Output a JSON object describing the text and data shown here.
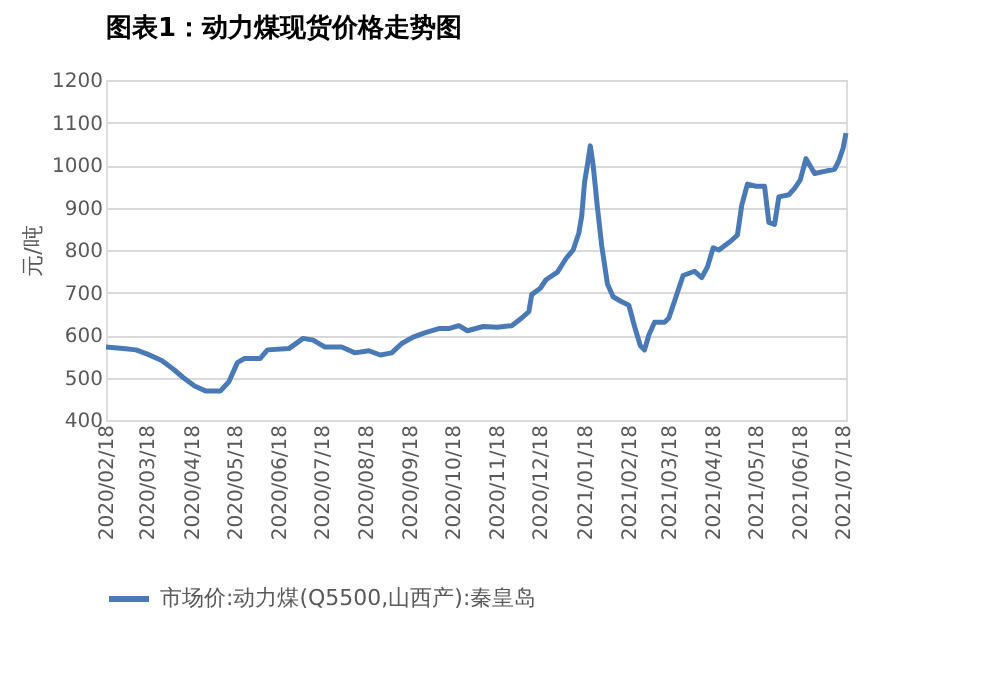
{
  "chart_data": {
    "type": "line",
    "title": "图表1：动力煤现货价格走势图",
    "ylabel": "元/吨",
    "x": [
      "2020-02-18",
      "2020-03-01",
      "2020-03-10",
      "2020-03-18",
      "2020-03-28",
      "2020-04-05",
      "2020-04-12",
      "2020-04-20",
      "2020-04-28",
      "2020-05-08",
      "2020-05-14",
      "2020-05-20",
      "2020-05-25",
      "2020-06-05",
      "2020-06-10",
      "2020-06-25",
      "2020-07-05",
      "2020-07-12",
      "2020-07-20",
      "2020-08-01",
      "2020-08-10",
      "2020-08-20",
      "2020-08-28",
      "2020-09-05",
      "2020-09-12",
      "2020-09-20",
      "2020-09-28",
      "2020-10-08",
      "2020-10-15",
      "2020-10-22",
      "2020-10-28",
      "2020-11-08",
      "2020-11-18",
      "2020-11-28",
      "2020-12-05",
      "2020-12-10",
      "2020-12-12",
      "2020-12-18",
      "2020-12-22",
      "2020-12-30",
      "2021-01-05",
      "2021-01-10",
      "2021-01-14",
      "2021-01-16",
      "2021-01-18",
      "2021-01-20",
      "2021-01-22",
      "2021-01-24",
      "2021-01-27",
      "2021-01-30",
      "2021-02-03",
      "2021-02-07",
      "2021-02-12",
      "2021-02-18",
      "2021-02-22",
      "2021-02-26",
      "2021-03-01",
      "2021-03-04",
      "2021-03-08",
      "2021-03-15",
      "2021-03-18",
      "2021-03-22",
      "2021-03-28",
      "2021-04-05",
      "2021-04-10",
      "2021-04-14",
      "2021-04-18",
      "2021-04-22",
      "2021-04-30",
      "2021-05-05",
      "2021-05-08",
      "2021-05-12",
      "2021-05-18",
      "2021-05-24",
      "2021-05-27",
      "2021-05-31",
      "2021-06-03",
      "2021-06-10",
      "2021-06-14",
      "2021-06-18",
      "2021-06-22",
      "2021-06-28",
      "2021-07-05",
      "2021-07-12",
      "2021-07-15",
      "2021-07-18",
      "2021-07-20"
    ],
    "series": [
      {
        "name": "市场价:动力煤(Q5500,山西产):秦皇岛",
        "color": "#4a7ab5",
        "values": [
          572,
          568,
          565,
          555,
          540,
          520,
          500,
          480,
          468,
          468,
          490,
          535,
          545,
          545,
          565,
          568,
          592,
          588,
          572,
          572,
          558,
          563,
          553,
          558,
          580,
          595,
          605,
          615,
          615,
          622,
          610,
          620,
          618,
          622,
          640,
          655,
          695,
          710,
          730,
          748,
          780,
          800,
          840,
          880,
          960,
          1000,
          1045,
          1000,
          900,
          810,
          720,
          690,
          680,
          670,
          620,
          575,
          565,
          600,
          630,
          630,
          640,
          680,
          740,
          750,
          735,
          760,
          805,
          800,
          820,
          835,
          905,
          955,
          950,
          950,
          865,
          860,
          925,
          930,
          945,
          965,
          1015,
          980,
          985,
          990,
          1010,
          1040,
          1075
        ]
      }
    ],
    "xlim": [
      "2020-02-18",
      "2021-07-20"
    ],
    "xticks": [
      {
        "value": "2020-02-18",
        "label": "2020/02/18"
      },
      {
        "value": "2020-03-18",
        "label": "2020/03/18"
      },
      {
        "value": "2020-04-18",
        "label": "2020/04/18"
      },
      {
        "value": "2020-05-18",
        "label": "2020/05/18"
      },
      {
        "value": "2020-06-18",
        "label": "2020/06/18"
      },
      {
        "value": "2020-07-18",
        "label": "2020/07/18"
      },
      {
        "value": "2020-08-18",
        "label": "2020/08/18"
      },
      {
        "value": "2020-09-18",
        "label": "2020/09/18"
      },
      {
        "value": "2020-10-18",
        "label": "2020/10/18"
      },
      {
        "value": "2020-11-18",
        "label": "2020/11/18"
      },
      {
        "value": "2020-12-18",
        "label": "2020/12/18"
      },
      {
        "value": "2021-01-18",
        "label": "2021/01/18"
      },
      {
        "value": "2021-02-18",
        "label": "2021/02/18"
      },
      {
        "value": "2021-03-18",
        "label": "2021/03/18"
      },
      {
        "value": "2021-04-18",
        "label": "2021/04/18"
      },
      {
        "value": "2021-05-18",
        "label": "2021/05/18"
      },
      {
        "value": "2021-06-18",
        "label": "2021/06/18"
      },
      {
        "value": "2021-07-18",
        "label": "2021/07/18"
      }
    ],
    "ylim": [
      400,
      1200
    ],
    "yticks": [
      400,
      500,
      600,
      700,
      800,
      900,
      1000,
      1100,
      1200
    ],
    "grid": "y",
    "legend": "bottom",
    "marker": "none",
    "line_style": "solid"
  }
}
